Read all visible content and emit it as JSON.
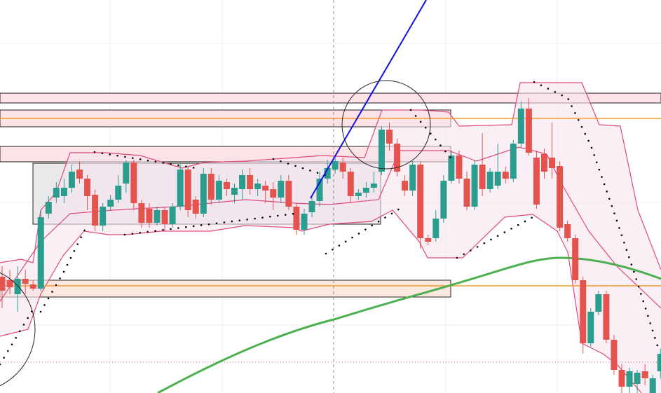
{
  "chart_data": {
    "type": "candlestick",
    "ylim": [
      0,
      561
    ],
    "up_color": "#2a9d8f",
    "down_color": "#e5534f",
    "open": [
      166,
      161,
      141,
      163,
      155,
      149,
      256,
      279,
      281,
      293,
      319,
      306,
      283,
      239,
      266,
      276,
      299,
      329,
      271,
      263,
      243,
      261,
      241,
      266,
      319,
      276,
      256,
      313,
      276,
      301,
      283,
      291,
      311,
      291,
      296,
      291,
      279,
      303,
      266,
      233,
      258,
      274,
      306,
      319,
      329,
      316,
      281,
      286,
      293,
      316,
      376,
      356,
      303,
      289,
      326,
      221,
      221,
      249,
      303,
      339,
      306,
      266,
      326,
      291,
      296,
      316,
      306,
      356,
      406,
      336,
      341,
      336,
      324,
      241,
      221,
      161,
      71,
      116,
      141,
      76,
      33,
      9,
      13,
      31,
      0,
      31
    ],
    "high": [
      181,
      176,
      181,
      176,
      161,
      261,
      281,
      301,
      306,
      326,
      331,
      311,
      291,
      271,
      283,
      311,
      333,
      333,
      276,
      271,
      266,
      266,
      271,
      326,
      323,
      281,
      321,
      321,
      311,
      306,
      299,
      319,
      321,
      306,
      303,
      301,
      311,
      311,
      271,
      263,
      281,
      316,
      333,
      336,
      336,
      321,
      291,
      301,
      316,
      381,
      386,
      363,
      311,
      331,
      331,
      226,
      261,
      311,
      346,
      346,
      316,
      333,
      371,
      321,
      356,
      323,
      361,
      416,
      421,
      346,
      349,
      386,
      331,
      246,
      226,
      166,
      121,
      146,
      146,
      83,
      41,
      36,
      33,
      41,
      26,
      63
    ],
    "low": [
      121,
      141,
      116,
      141,
      146,
      146,
      249,
      271,
      271,
      286,
      299,
      261,
      231,
      231,
      261,
      271,
      286,
      261,
      236,
      236,
      239,
      231,
      236,
      261,
      251,
      249,
      251,
      269,
      271,
      281,
      271,
      276,
      283,
      281,
      271,
      261,
      271,
      261,
      226,
      226,
      251,
      266,
      299,
      313,
      306,
      271,
      276,
      279,
      286,
      311,
      346,
      309,
      281,
      281,
      206,
      211,
      216,
      243,
      299,
      299,
      261,
      261,
      281,
      286,
      291,
      299,
      301,
      351,
      339,
      263,
      306,
      306,
      231,
      216,
      156,
      56,
      66,
      111,
      71,
      26,
      0,
      0,
      0,
      11,
      0,
      21
    ],
    "close": [
      146,
      151,
      163,
      156,
      149,
      251,
      273,
      293,
      293,
      316,
      306,
      281,
      239,
      266,
      276,
      296,
      329,
      271,
      243,
      243,
      261,
      241,
      266,
      319,
      261,
      256,
      313,
      276,
      303,
      291,
      293,
      311,
      291,
      299,
      289,
      279,
      303,
      266,
      233,
      256,
      274,
      306,
      321,
      331,
      316,
      281,
      286,
      293,
      299,
      376,
      356,
      316,
      289,
      326,
      221,
      216,
      249,
      303,
      339,
      306,
      266,
      326,
      291,
      316,
      316,
      306,
      356,
      406,
      343,
      269,
      316,
      321,
      236,
      221,
      161,
      71,
      116,
      141,
      76,
      33,
      9,
      31,
      29,
      21,
      21,
      56
    ]
  }
}
